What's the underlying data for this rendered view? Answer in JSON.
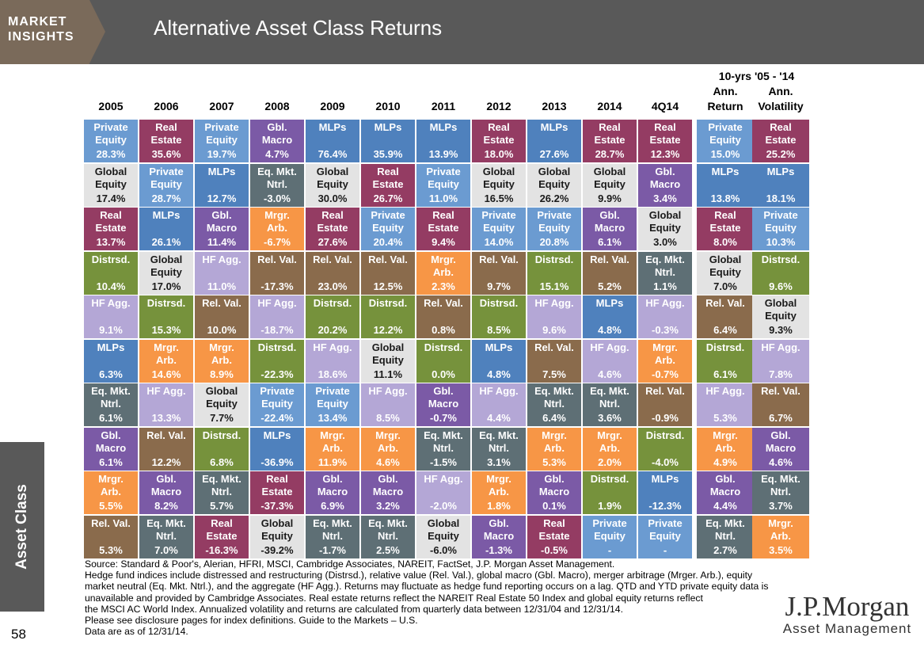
{
  "header": {
    "logo_line1": "MARKET",
    "logo_line2": "INSIGHTS",
    "title": "Alternative Asset Class Returns"
  },
  "group_header": "10-yrs '05 - '14",
  "side_tab": "Asset Class",
  "page_number": "58",
  "colors": {
    "Private Equity": "#6b9bd1",
    "Real Estate": "#943c63",
    "MLPs": "#4f81bd",
    "Gbl. Macro": "#7b5aa6",
    "Global Equity": "#e3e3e3",
    "Eq. Mkt. Ntrl.": "#5e6f75",
    "Mrgr. Arb.": "#f79646",
    "Distrsd.": "#76923c",
    "HF Agg.": "#b4a7d6",
    "Rel. Val.": "#8a6b4c"
  },
  "chart_data": {
    "type": "table",
    "columns": [
      {
        "header": "2005",
        "cells": [
          [
            "Private Equity",
            "28.3%"
          ],
          [
            "Global Equity",
            "17.4%"
          ],
          [
            "Real Estate",
            "13.7%"
          ],
          [
            "Distrsd.",
            "10.4%"
          ],
          [
            "HF Agg.",
            "9.1%"
          ],
          [
            "MLPs",
            "6.3%"
          ],
          [
            "Eq. Mkt. Ntrl.",
            "6.1%"
          ],
          [
            "Gbl. Macro",
            "6.1%"
          ],
          [
            "Mrgr. Arb.",
            "5.5%"
          ],
          [
            "Rel. Val.",
            "5.3%"
          ]
        ]
      },
      {
        "header": "2006",
        "cells": [
          [
            "Real Estate",
            "35.6%"
          ],
          [
            "Private Equity",
            "28.7%"
          ],
          [
            "MLPs",
            "26.1%"
          ],
          [
            "Global Equity",
            "17.0%"
          ],
          [
            "Distrsd.",
            "15.3%"
          ],
          [
            "Mrgr. Arb.",
            "14.6%"
          ],
          [
            "HF Agg.",
            "13.3%"
          ],
          [
            "Rel. Val.",
            "12.2%"
          ],
          [
            "Gbl. Macro",
            "8.2%"
          ],
          [
            "Eq. Mkt. Ntrl.",
            "7.0%"
          ]
        ]
      },
      {
        "header": "2007",
        "cells": [
          [
            "Private Equity",
            "19.7%"
          ],
          [
            "MLPs",
            "12.7%"
          ],
          [
            "Gbl. Macro",
            "11.4%"
          ],
          [
            "HF Agg.",
            "11.0%"
          ],
          [
            "Rel. Val.",
            "10.0%"
          ],
          [
            "Mrgr. Arb.",
            "8.9%"
          ],
          [
            "Global Equity",
            "7.7%"
          ],
          [
            "Distrsd.",
            "6.8%"
          ],
          [
            "Eq. Mkt. Ntrl.",
            "5.7%"
          ],
          [
            "Real Estate",
            "-16.3%"
          ]
        ]
      },
      {
        "header": "2008",
        "cells": [
          [
            "Gbl. Macro",
            "4.7%"
          ],
          [
            "Eq. Mkt. Ntrl.",
            "-3.0%"
          ],
          [
            "Mrgr. Arb.",
            "-6.7%"
          ],
          [
            "Rel. Val.",
            "-17.3%"
          ],
          [
            "HF Agg.",
            "-18.7%"
          ],
          [
            "Distrsd.",
            "-22.3%"
          ],
          [
            "Private Equity",
            "-22.4%"
          ],
          [
            "MLPs",
            "-36.9%"
          ],
          [
            "Real Estate",
            "-37.3%"
          ],
          [
            "Global Equity",
            "-39.2%"
          ]
        ]
      },
      {
        "header": "2009",
        "cells": [
          [
            "MLPs",
            "76.4%"
          ],
          [
            "Global Equity",
            "30.0%"
          ],
          [
            "Real Estate",
            "27.6%"
          ],
          [
            "Rel. Val.",
            "23.0%"
          ],
          [
            "Distrsd.",
            "20.2%"
          ],
          [
            "HF Agg.",
            "18.6%"
          ],
          [
            "Private Equity",
            "13.4%"
          ],
          [
            "Mrgr. Arb.",
            "11.9%"
          ],
          [
            "Gbl. Macro",
            "6.9%"
          ],
          [
            "Eq. Mkt. Ntrl.",
            "-1.7%"
          ]
        ]
      },
      {
        "header": "2010",
        "cells": [
          [
            "MLPs",
            "35.9%"
          ],
          [
            "Real Estate",
            "26.7%"
          ],
          [
            "Private Equity",
            "20.4%"
          ],
          [
            "Rel. Val.",
            "12.5%"
          ],
          [
            "Distrsd.",
            "12.2%"
          ],
          [
            "Global Equity",
            "11.1%"
          ],
          [
            "HF Agg.",
            "8.5%"
          ],
          [
            "Mrgr. Arb.",
            "4.6%"
          ],
          [
            "Gbl. Macro",
            "3.2%"
          ],
          [
            "Eq. Mkt. Ntrl.",
            "2.5%"
          ]
        ]
      },
      {
        "header": "2011",
        "cells": [
          [
            "MLPs",
            "13.9%"
          ],
          [
            "Private Equity",
            "11.0%"
          ],
          [
            "Real Estate",
            "9.4%"
          ],
          [
            "Mrgr. Arb.",
            "2.3%"
          ],
          [
            "Rel. Val.",
            "0.8%"
          ],
          [
            "Distrsd.",
            "0.0%"
          ],
          [
            "Gbl. Macro",
            "-0.7%"
          ],
          [
            "Eq. Mkt. Ntrl.",
            "-1.5%"
          ],
          [
            "HF Agg.",
            "-2.0%"
          ],
          [
            "Global Equity",
            "-6.0%"
          ]
        ]
      },
      {
        "header": "2012",
        "cells": [
          [
            "Real Estate",
            "18.0%"
          ],
          [
            "Global Equity",
            "16.5%"
          ],
          [
            "Private Equity",
            "14.0%"
          ],
          [
            "Rel. Val.",
            "9.7%"
          ],
          [
            "Distrsd.",
            "8.5%"
          ],
          [
            "MLPs",
            "4.8%"
          ],
          [
            "HF Agg.",
            "4.4%"
          ],
          [
            "Eq. Mkt. Ntrl.",
            "3.1%"
          ],
          [
            "Mrgr. Arb.",
            "1.8%"
          ],
          [
            "Gbl. Macro",
            "-1.3%"
          ]
        ]
      },
      {
        "header": "2013",
        "cells": [
          [
            "MLPs",
            "27.6%"
          ],
          [
            "Global Equity",
            "26.2%"
          ],
          [
            "Private Equity",
            "20.8%"
          ],
          [
            "Distrsd.",
            "15.1%"
          ],
          [
            "HF Agg.",
            "9.6%"
          ],
          [
            "Rel. Val.",
            "7.5%"
          ],
          [
            "Eq. Mkt. Ntrl.",
            "6.4%"
          ],
          [
            "Mrgr. Arb.",
            "5.3%"
          ],
          [
            "Gbl. Macro",
            "0.1%"
          ],
          [
            "Real Estate",
            "-0.5%"
          ]
        ]
      },
      {
        "header": "2014",
        "cells": [
          [
            "Real Estate",
            "28.7%"
          ],
          [
            "Global Equity",
            "9.9%"
          ],
          [
            "Gbl. Macro",
            "6.1%"
          ],
          [
            "Rel. Val.",
            "5.2%"
          ],
          [
            "MLPs",
            "4.8%"
          ],
          [
            "HF Agg.",
            "4.6%"
          ],
          [
            "Eq. Mkt. Ntrl.",
            "3.6%"
          ],
          [
            "Mrgr. Arb.",
            "2.0%"
          ],
          [
            "Distrsd.",
            "1.9%"
          ],
          [
            "Private Equity",
            "-"
          ]
        ]
      },
      {
        "header": "4Q14",
        "cells": [
          [
            "Real Estate",
            "12.3%"
          ],
          [
            "Gbl. Macro",
            "3.4%"
          ],
          [
            "Global Equity",
            "3.0%"
          ],
          [
            "Eq. Mkt. Ntrl.",
            "1.1%"
          ],
          [
            "HF Agg.",
            "-0.3%"
          ],
          [
            "Mrgr. Arb.",
            "-0.7%"
          ],
          [
            "Rel. Val.",
            "-0.9%"
          ],
          [
            "Distrsd.",
            "-4.0%"
          ],
          [
            "MLPs",
            "-12.3%"
          ],
          [
            "Private Equity",
            "-"
          ]
        ]
      },
      {
        "header": "Ann.\nReturn",
        "cells": [
          [
            "Private Equity",
            "15.0%"
          ],
          [
            "MLPs",
            "13.8%"
          ],
          [
            "Real Estate",
            "8.0%"
          ],
          [
            "Global Equity",
            "7.0%"
          ],
          [
            "Rel. Val.",
            "6.4%"
          ],
          [
            "Distrsd.",
            "6.1%"
          ],
          [
            "HF Agg.",
            "5.3%"
          ],
          [
            "Mrgr. Arb.",
            "4.9%"
          ],
          [
            "Gbl. Macro",
            "4.4%"
          ],
          [
            "Eq. Mkt. Ntrl.",
            "2.7%"
          ]
        ]
      },
      {
        "header": "Ann.\nVolatility",
        "cells": [
          [
            "Real Estate",
            "25.2%"
          ],
          [
            "MLPs",
            "18.1%"
          ],
          [
            "Private Equity",
            "10.3%"
          ],
          [
            "Distrsd.",
            "9.6%"
          ],
          [
            "Global Equity",
            "9.3%"
          ],
          [
            "HF Agg.",
            "7.8%"
          ],
          [
            "Rel. Val.",
            "6.7%"
          ],
          [
            "Gbl. Macro",
            "4.6%"
          ],
          [
            "Eq. Mkt. Ntrl.",
            "3.7%"
          ],
          [
            "Mrgr. Arb.",
            "3.5%"
          ]
        ]
      }
    ]
  },
  "footnote": [
    "Source: Standard & Poor's, Alerian, HFRI, MSCI, Cambridge Associates, NAREIT, FactSet, J.P. Morgan Asset Management.",
    "Hedge fund indices include distressed and restructuring (Distrsd.), relative value (Rel. Val.), global macro (Gbl. Macro), merger arbitrage (Mrger. Arb.), equity",
    "market neutral (Eq. Mkt. Ntrl.), and the aggregate (HF Agg.). Returns may fluctuate as hedge fund reporting occurs on a lag. QTD and YTD private equity data is",
    "unavailable and provided by Cambridge Associates. Real estate returns reflect the NAREIT Real Estate 50 Index and global equity returns reflect",
    "the MSCI AC World Index. Annualized volatility and returns are calculated from quarterly data between 12/31/04 and 12/31/14.",
    "Please see disclosure pages for index definitions.  Guide to the Markets – U.S.",
    "Data are as of 12/31/14."
  ],
  "brand": {
    "name": "J.P.Morgan",
    "sub": "Asset Management"
  }
}
